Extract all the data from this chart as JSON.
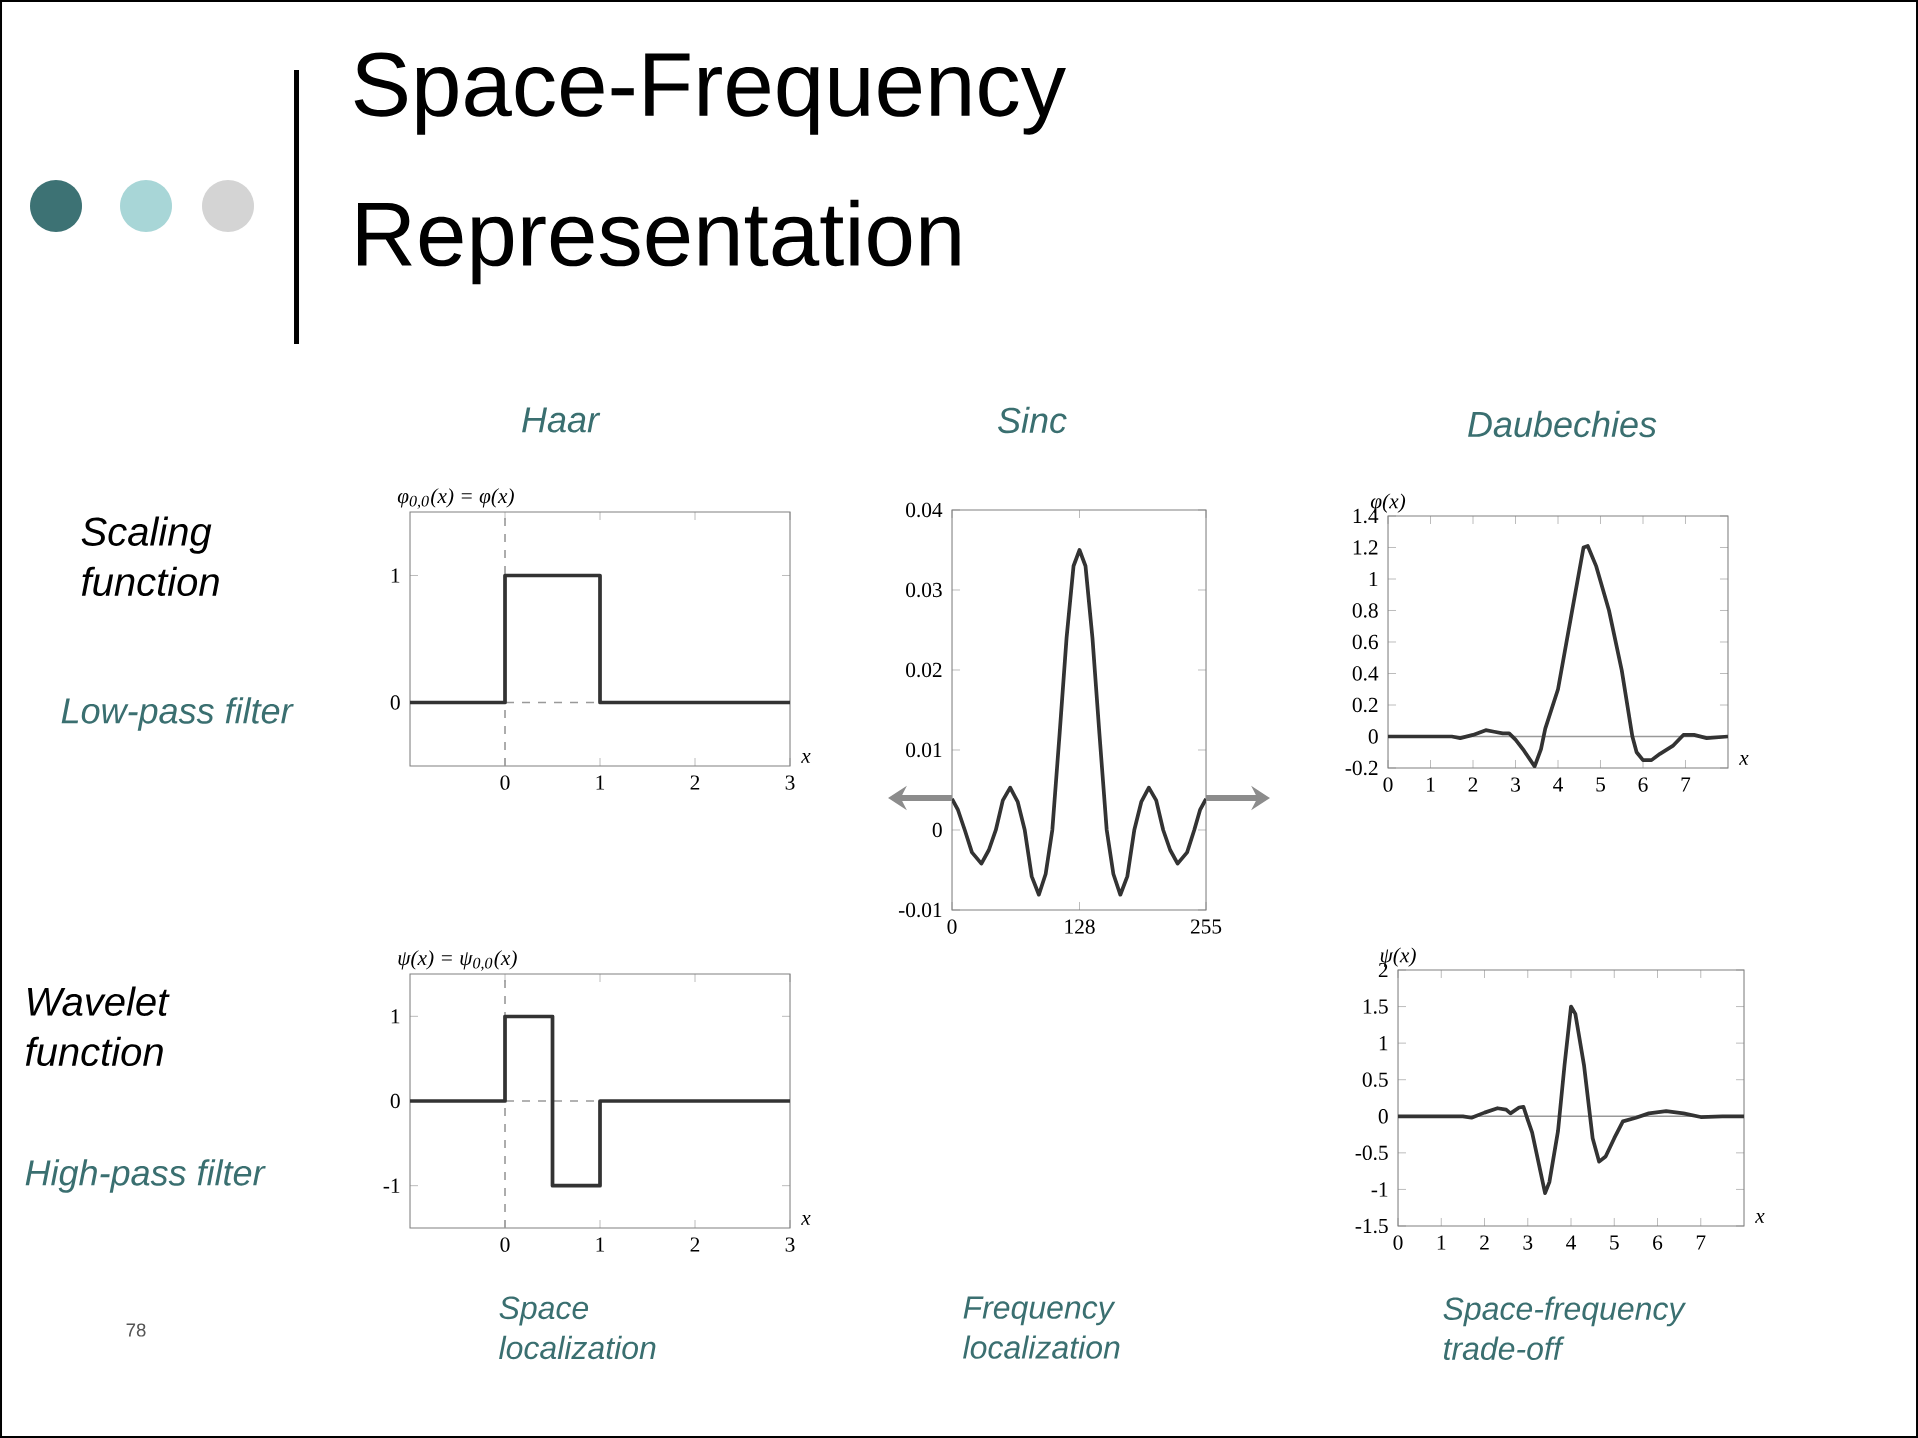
{
  "chart_data": [
    {
      "type": "line",
      "title": "Haar",
      "ylabel": "φ$_{0,0}$(x) = φ(x)",
      "xlabel": "x",
      "annotations": [
        "Space-Frequency Representation",
        "Scaling function",
        "Low-pass filter"
      ],
      "x": [
        -1,
        0,
        0,
        1,
        1,
        3
      ],
      "values": [
        0,
        0,
        1,
        1,
        0,
        0
      ],
      "color": "#333333",
      "xlim": [
        -1,
        3
      ],
      "ylim": [
        -0.5,
        1.5
      ],
      "xticks": [
        0,
        1,
        2,
        3
      ],
      "yticks": [
        0,
        1
      ],
      "ref_lines": [
        {
          "axis": "x",
          "value": 0,
          "line_style": "dashed",
          "color": "#999999"
        },
        {
          "axis": "y",
          "value": 0,
          "line_style": "dashed",
          "color": "#999999"
        }
      ]
    },
    {
      "type": "line",
      "title": "Sinc",
      "annotations": [
        "Frequency localization"
      ],
      "x": [
        0,
        6,
        12.8,
        20,
        29.5,
        37,
        44,
        51,
        58.4,
        66,
        73,
        80,
        87.2,
        94,
        100.7,
        108,
        115,
        122,
        128,
        134,
        141,
        148,
        155.3,
        162,
        169,
        176,
        183,
        190,
        197.6,
        205,
        212,
        219,
        226.5,
        236,
        243.2,
        249,
        255
      ],
      "values": [
        0.0039,
        0.0025,
        0,
        -0.0028,
        -0.0042,
        -0.0025,
        0,
        0.0037,
        0.0053,
        0.0035,
        0,
        -0.0058,
        -0.0081,
        -0.0055,
        0,
        0.012,
        0.024,
        0.033,
        0.035,
        0.033,
        0.024,
        0.012,
        0,
        -0.0055,
        -0.0081,
        -0.0058,
        0,
        0.0035,
        0.0053,
        0.0037,
        0,
        -0.0025,
        -0.0042,
        -0.0028,
        0,
        0.0025,
        0.0039
      ],
      "color": "#333333",
      "xlim": [
        0,
        255
      ],
      "ylim": [
        -0.01,
        0.04
      ],
      "xticks": [
        0,
        128,
        255
      ],
      "yticks": [
        -0.01,
        0,
        0.01,
        0.02,
        0.03,
        0.04
      ]
    },
    {
      "type": "line",
      "title": "Daubechies",
      "ylabel": "φ(x)",
      "xlabel": "x",
      "x": [
        0,
        1.5,
        1.7,
        2.0,
        2.3,
        2.5,
        2.7,
        2.85,
        3.0,
        3.2,
        3.45,
        3.6,
        3.7,
        4.0,
        4.3,
        4.6,
        4.7,
        4.9,
        5.2,
        5.5,
        5.75,
        5.85,
        6.0,
        6.2,
        6.4,
        6.7,
        6.95,
        7.2,
        7.5,
        8
      ],
      "values": [
        0,
        0,
        -0.01,
        0.01,
        0.04,
        0.03,
        0.02,
        0.02,
        -0.02,
        -0.09,
        -0.19,
        -0.08,
        0.05,
        0.3,
        0.75,
        1.2,
        1.21,
        1.08,
        0.8,
        0.42,
        0,
        -0.1,
        -0.15,
        -0.15,
        -0.11,
        -0.06,
        0.01,
        0.01,
        -0.01,
        0
      ],
      "color": "#333333",
      "xlim": [
        0,
        8
      ],
      "ylim": [
        -0.2,
        1.4
      ],
      "xticks": [
        0,
        1,
        2,
        3,
        4,
        5,
        6,
        7
      ],
      "yticks": [
        -0.2,
        0,
        0.2,
        0.4,
        0.6,
        0.8,
        1,
        1.2,
        1.4
      ],
      "ref_lines": [
        {
          "axis": "y",
          "value": 0,
          "line_style": "solid",
          "color": "#999999"
        }
      ]
    },
    {
      "type": "line",
      "ylabel": "ψ(x) = ψ$_{0,0}$(x)",
      "xlabel": "x",
      "annotations": [
        "Wavelet function",
        "High-pass filter",
        "Space localization",
        "78"
      ],
      "x": [
        -1,
        0,
        0,
        0.5,
        0.5,
        1,
        1,
        3
      ],
      "values": [
        0,
        0,
        1,
        1,
        -1,
        -1,
        0,
        0
      ],
      "color": "#333333",
      "xlim": [
        -1,
        3
      ],
      "ylim": [
        -1.5,
        1.5
      ],
      "xticks": [
        0,
        1,
        2,
        3
      ],
      "yticks": [
        -1,
        0,
        1
      ],
      "ref_lines": [
        {
          "axis": "x",
          "value": 0,
          "line_style": "dashed",
          "color": "#999999"
        },
        {
          "axis": "y",
          "value": 0,
          "line_style": "dashed",
          "color": "#999999"
        }
      ]
    },
    {
      "type": "line",
      "ylabel": "ψ(x)",
      "xlabel": "x",
      "annotations": [
        "Space-frequency trade-off"
      ],
      "x": [
        0,
        1.5,
        1.7,
        2.0,
        2.3,
        2.5,
        2.6,
        2.8,
        2.9,
        3.0,
        3.1,
        3.4,
        3.5,
        3.7,
        3.85,
        4.0,
        4.1,
        4.3,
        4.5,
        4.65,
        4.8,
        5.0,
        5.2,
        5.5,
        5.8,
        6.2,
        6.6,
        7.0,
        7.5,
        8
      ],
      "values": [
        0,
        0,
        -0.02,
        0.05,
        0.11,
        0.09,
        0.04,
        0.12,
        0.13,
        -0.05,
        -0.22,
        -1.05,
        -0.9,
        -0.2,
        0.7,
        1.5,
        1.4,
        0.7,
        -0.3,
        -0.62,
        -0.55,
        -0.3,
        -0.07,
        -0.02,
        0.04,
        0.07,
        0.04,
        -0.01,
        0,
        0
      ],
      "color": "#333333",
      "xlim": [
        0,
        8
      ],
      "ylim": [
        -1.5,
        2
      ],
      "xticks": [
        0,
        1,
        2,
        3,
        4,
        5,
        6,
        7
      ],
      "yticks": [
        -1.5,
        -1,
        -0.5,
        0,
        0.5,
        1,
        1.5,
        2
      ],
      "ref_lines": [
        {
          "axis": "y",
          "value": 0,
          "line_style": "solid",
          "color": "#999999"
        }
      ]
    }
  ]
}
